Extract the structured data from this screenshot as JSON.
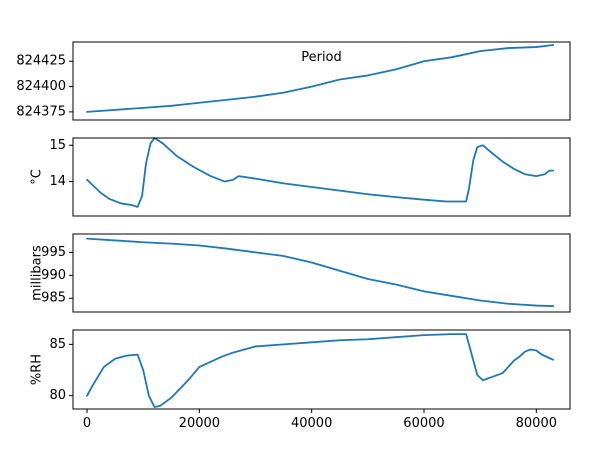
{
  "chart_data": [
    {
      "type": "line",
      "title": "Period",
      "ylabel": "",
      "xlim": [
        -2500,
        86000
      ],
      "ylim": [
        824367,
        824444
      ],
      "yticks": [
        824375,
        824400,
        824425
      ],
      "show_xticks": false,
      "line_color": "#1f77b4",
      "series": [
        {
          "x": [
            0,
            5000,
            10000,
            15000,
            20000,
            25000,
            30000,
            35000,
            40000,
            45000,
            50000,
            55000,
            60000,
            65000,
            70000,
            75000,
            80000,
            83000
          ],
          "y": [
            824375,
            824377,
            824379,
            824381,
            824384,
            824387,
            824390,
            824394,
            824400,
            824407,
            824411,
            824417,
            824425,
            824429,
            824435,
            824438,
            824439,
            824441
          ]
        }
      ]
    },
    {
      "type": "line",
      "title": "",
      "ylabel": "°C",
      "xlim": [
        -2500,
        86000
      ],
      "ylim": [
        13.05,
        15.2
      ],
      "yticks": [
        14,
        15
      ],
      "show_xticks": false,
      "line_color": "#1f77b4",
      "series": [
        {
          "x": [
            0,
            1000,
            2500,
            4000,
            6000,
            8000,
            9000,
            9800,
            10500,
            11300,
            12000,
            13500,
            16000,
            19000,
            22000,
            24500,
            26000,
            27000,
            30000,
            35000,
            40000,
            45000,
            50000,
            55000,
            60000,
            64000,
            67500,
            68000,
            68800,
            69500,
            70500,
            72000,
            74000,
            76000,
            78000,
            80000,
            81500,
            82300,
            83000
          ],
          "y": [
            14.05,
            13.9,
            13.68,
            13.52,
            13.4,
            13.35,
            13.3,
            13.6,
            14.5,
            15.05,
            15.2,
            15.05,
            14.7,
            14.4,
            14.15,
            14.0,
            14.05,
            14.15,
            14.08,
            13.95,
            13.85,
            13.75,
            13.65,
            13.57,
            13.5,
            13.45,
            13.45,
            13.8,
            14.6,
            14.95,
            15.0,
            14.8,
            14.55,
            14.35,
            14.2,
            14.15,
            14.2,
            14.3,
            14.3
          ]
        }
      ]
    },
    {
      "type": "line",
      "title": "",
      "ylabel": "millibars",
      "xlim": [
        -2500,
        86000
      ],
      "ylim": [
        982,
        999
      ],
      "yticks": [
        985,
        990,
        995
      ],
      "show_xticks": false,
      "line_color": "#1f77b4",
      "series": [
        {
          "x": [
            0,
            5000,
            10000,
            15000,
            20000,
            25000,
            30000,
            35000,
            40000,
            45000,
            50000,
            55000,
            60000,
            65000,
            70000,
            75000,
            80000,
            83000
          ],
          "y": [
            998.0,
            997.6,
            997.2,
            996.9,
            996.5,
            995.8,
            995.0,
            994.2,
            992.8,
            991.0,
            989.2,
            988.0,
            986.5,
            985.5,
            984.5,
            983.8,
            983.4,
            983.3
          ]
        }
      ]
    },
    {
      "type": "line",
      "title": "",
      "ylabel": "%RH",
      "xlim": [
        -2500,
        86000
      ],
      "ylim": [
        78.7,
        86.4
      ],
      "yticks": [
        80,
        85
      ],
      "show_xticks": true,
      "xticks": [
        0,
        20000,
        40000,
        60000,
        80000
      ],
      "line_color": "#1f77b4",
      "series": [
        {
          "x": [
            0,
            1000,
            3000,
            5000,
            7000,
            9000,
            10000,
            11000,
            12000,
            13000,
            15000,
            18000,
            20000,
            22000,
            24000,
            26000,
            28000,
            30000,
            35000,
            40000,
            45000,
            50000,
            55000,
            60000,
            65000,
            67500,
            68500,
            69500,
            70500,
            72000,
            74000,
            75000,
            76000,
            77000,
            78000,
            79000,
            80000,
            81000,
            83000
          ],
          "y": [
            80.0,
            81.0,
            82.8,
            83.6,
            83.9,
            84.0,
            82.5,
            80.0,
            78.9,
            79.0,
            79.8,
            81.5,
            82.8,
            83.3,
            83.8,
            84.2,
            84.5,
            84.8,
            85.0,
            85.2,
            85.4,
            85.5,
            85.7,
            85.9,
            86.0,
            86.0,
            84.0,
            82.0,
            81.5,
            81.8,
            82.2,
            82.8,
            83.4,
            83.8,
            84.3,
            84.5,
            84.4,
            84.0,
            83.5
          ]
        }
      ]
    }
  ]
}
